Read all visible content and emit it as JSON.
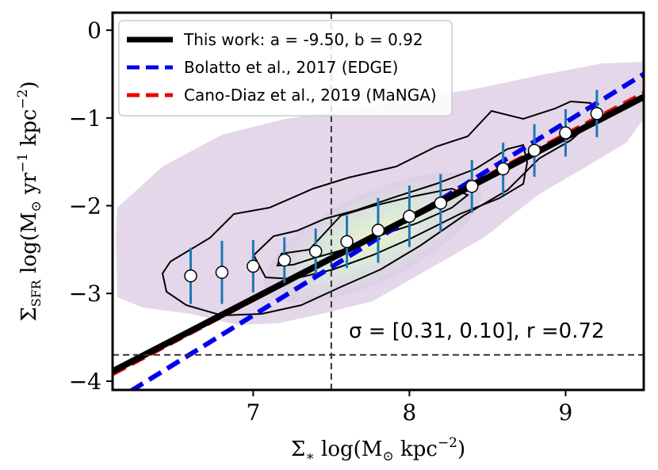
{
  "chart_data": {
    "type": "scatter",
    "title": "",
    "xlabel": "Σ* log(M⊙ kpc⁻²)",
    "ylabel": "ΣSFR log(M⊙ yr⁻¹ kpc⁻²)",
    "xlim": [
      6.1,
      9.5
    ],
    "ylim": [
      -4.1,
      0.2
    ],
    "xticks": [
      7,
      8,
      9
    ],
    "xtick_labels": [
      "7",
      "8",
      "9"
    ],
    "yticks": [
      0,
      -1,
      -2,
      -3,
      -4
    ],
    "ytick_labels": [
      "0",
      "−1",
      "−2",
      "−3",
      "−4"
    ],
    "binned_points": {
      "x": [
        6.6,
        6.8,
        7.0,
        7.2,
        7.4,
        7.6,
        7.8,
        8.0,
        8.2,
        8.4,
        8.6,
        8.8,
        9.0,
        9.2
      ],
      "y": [
        -2.8,
        -2.76,
        -2.69,
        -2.62,
        -2.52,
        -2.41,
        -2.28,
        -2.12,
        -1.97,
        -1.78,
        -1.58,
        -1.37,
        -1.17,
        -0.95
      ],
      "yerr": [
        0.32,
        0.36,
        0.3,
        0.26,
        0.26,
        0.3,
        0.37,
        0.35,
        0.33,
        0.3,
        0.3,
        0.3,
        0.27,
        0.27
      ]
    },
    "fit_lines": [
      {
        "name": "This work: a = -9.50, b = 0.92",
        "slope": 0.92,
        "intercept": -9.5,
        "color": "#000000",
        "style": "solid"
      },
      {
        "name": "Bolatto et al., 2017 (EDGE)",
        "slope": 1.1,
        "intercept": -10.95,
        "color": "#0000ee",
        "style": "dashed"
      },
      {
        "name": "Cano-Diaz et al., 2019 (MaNGA)",
        "slope": 0.94,
        "intercept": -9.65,
        "color": "#ee0000",
        "style": "dashed"
      }
    ],
    "threshold_lines": {
      "vertical_x": 7.5,
      "horizontal_y": -3.7
    },
    "annotation": "σ = [0.31, 0.10], r =0.72",
    "legend_position": "top-left",
    "colors": {
      "density_outer": "#dcc8e4",
      "density_core": "#f0f5c0",
      "errorbar": "#1f77b4",
      "marker_fill": "#ffffff"
    }
  }
}
